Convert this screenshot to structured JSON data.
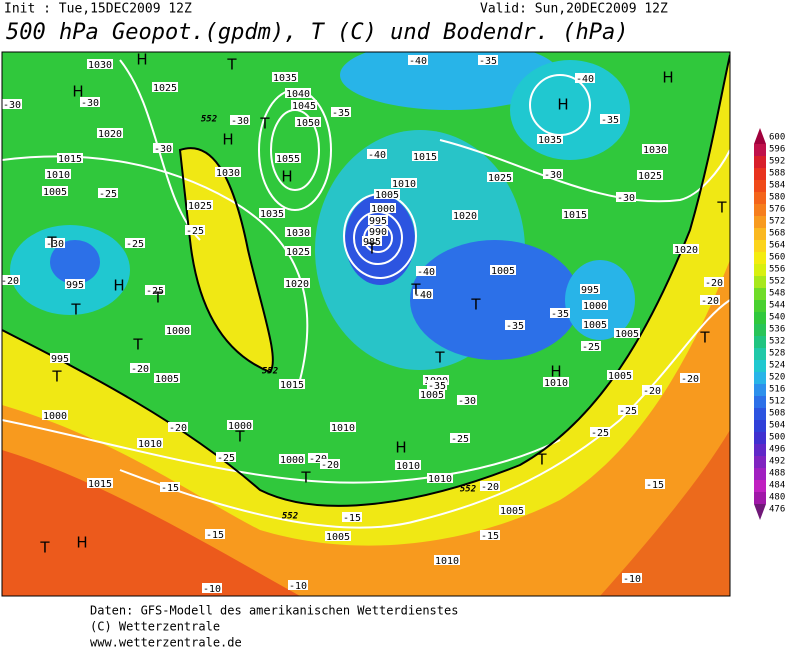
{
  "header": {
    "init": "Init : Tue,15DEC2009 12Z",
    "valid": "Valid: Sun,20DEC2009 12Z",
    "title": "500 hPa Geopot.(gpdm), T (C) und Bodendr. (hPa)"
  },
  "legend": {
    "levels": [
      600,
      596,
      592,
      588,
      584,
      580,
      576,
      572,
      568,
      564,
      560,
      556,
      552,
      548,
      544,
      540,
      536,
      532,
      528,
      524,
      520,
      516,
      512,
      508,
      504,
      500,
      496,
      492,
      488,
      484,
      480,
      476
    ],
    "colors": [
      "#a0003c",
      "#c0104a",
      "#d81e2a",
      "#e8321e",
      "#f04a18",
      "#f4641a",
      "#f67e1c",
      "#f89a1e",
      "#fab820",
      "#fcd41c",
      "#f4ec10",
      "#d8f010",
      "#a8e81c",
      "#70dc28",
      "#48d030",
      "#30c83c",
      "#28c458",
      "#20c480",
      "#20c8a8",
      "#20c8d0",
      "#28b4e8",
      "#2c90ec",
      "#2c70e8",
      "#2c54e0",
      "#3040d8",
      "#4030d0",
      "#6028c8",
      "#8024c0",
      "#a020c0",
      "#c020c0",
      "#a018a8",
      "#701878"
    ]
  },
  "map": {
    "contour_labels": [
      "1030",
      "1025",
      "1020",
      "1015",
      "1010",
      "1005",
      "-30",
      "-30",
      "-30",
      "-25",
      "-25",
      "995",
      "-30",
      "-25",
      "1000",
      "995",
      "-20",
      "1005",
      "1000",
      "-20",
      "1010",
      "1015",
      "-15",
      "1035",
      "1040",
      "1045",
      "1050",
      "1055",
      "1035",
      "1030",
      "1025",
      "1020",
      "-30",
      "-25",
      "1030",
      "1025",
      "1015",
      "-35",
      "-40",
      "1015",
      "1010",
      "1005",
      "1000",
      "995",
      "990",
      "985",
      "1020",
      "1015",
      "1025",
      "-30",
      "1035",
      "-35",
      "1030",
      "-40",
      "-40",
      "-35",
      "-40",
      "-40",
      "1005",
      "-35",
      "-35",
      "1000",
      "995",
      "1005",
      "1005",
      "-25",
      "1000",
      "1005",
      "-35",
      "-30",
      "1010",
      "1005",
      "-20",
      "-20",
      "-25",
      "-25",
      "-25",
      "1010",
      "1010",
      "1010",
      "1000",
      "1000",
      "-25",
      "-20",
      "-20",
      "-20",
      "1005",
      "1005",
      "-15",
      "-15",
      "-15",
      "1010",
      "-15",
      "-10",
      "-10",
      "-10",
      "-30",
      "1025",
      "1020",
      "-20",
      "-20",
      "-20"
    ],
    "geopotential_labels": [
      "552",
      "552",
      "552",
      "552"
    ],
    "centers": [
      "H",
      "H",
      "H",
      "H",
      "H",
      "H",
      "H",
      "H",
      "H",
      "H",
      "T",
      "T",
      "T",
      "T",
      "T",
      "T",
      "T",
      "T",
      "T",
      "T",
      "T",
      "T",
      "T",
      "T",
      "T",
      "T",
      "T"
    ]
  },
  "footer": {
    "lines": [
      "Daten: GFS-Modell des amerikanischen Wetterdienstes",
      "(C) Wetterzentrale",
      "www.wetterzentrale.de"
    ]
  }
}
